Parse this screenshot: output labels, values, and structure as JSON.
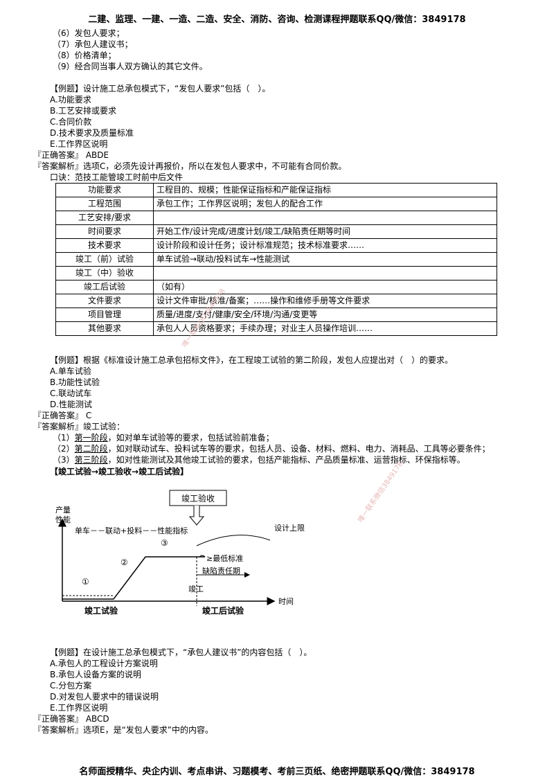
{
  "header": "二建、监理、一建、一造、二造、安全、消防、咨询、检测课程押题联系QQ/微信：3849178",
  "footer": "名师面授精华、央企内训、考点串讲、习题模考、考前三页纸、绝密押题联系QQ/微信：3849178",
  "top_list": [
    "（6）发包人要求；",
    "（7）承包人建议书；",
    "（8）价格清单；",
    "（9）经合同当事人双方确认的其它文件。"
  ],
  "q1": {
    "question": "【例题】设计施工总承包模式下，“发包人要求”包括（　）。",
    "options": [
      "A.功能要求",
      "B.工艺安排或要求",
      "C.合同价款",
      "D.技术要求及质量标准",
      "E.工作界区说明"
    ],
    "answer": "『正确答案』 ABDE",
    "analysis": "『答案解析』选项C，必须先设计再报价，所以在发包人要求中，不可能有合同价款。"
  },
  "mnemonic": "口诀：范技工能管竣工时前中后文件",
  "table": [
    [
      "功能要求",
      "工程目的、规模；性能保证指标和产能保证指标"
    ],
    [
      "工程范围",
      "承包工作；工作界区说明；发包人的配合工作"
    ],
    [
      "工艺安排/要求",
      ""
    ],
    [
      "时间要求",
      "开始工作/设计完成/进度计划/竣工/缺陷责任期等时间"
    ],
    [
      "技术要求",
      "设计阶段和设计任务；设计标准规范；技术标准要求……"
    ],
    [
      "竣工（前）试验",
      "单车试验→联动/投料试车→性能测试"
    ],
    [
      "竣工（中）验收",
      ""
    ],
    [
      "竣工后试验",
      "（如有）"
    ],
    [
      "文件要求",
      "设计文件审批/核准/备案；……操作和维修手册等文件要求"
    ],
    [
      "项目管理",
      "质量/进度/支付/健康/安全/环境/沟通/变更等"
    ],
    [
      "其他要求",
      "承包人人员资格要求；手续办理；对业主人员操作培训……"
    ]
  ],
  "q2": {
    "question": "【例题】根据《标准设计施工总承包招标文件》，在工程竣工试验的第二阶段，发包人应提出对（　）的要求。",
    "options": [
      "A.单车试验",
      "B.功能性试验",
      "C.联动试车",
      "D.性能测试"
    ],
    "answer": "『正确答案』 C",
    "analysis": "『答案解析』竣工试验："
  },
  "stages": [
    {
      "num": "（1）",
      "stage": "第一阶段",
      "text": "，如对单车试验等的要求，包括试验前准备；"
    },
    {
      "num": "（2）",
      "stage": "第二阶段",
      "text": "，如对联动试车、投料试车等的要求，包括人员、设备、材料、燃料、电力、消耗品、工具等必要条件；"
    },
    {
      "num": "（3）",
      "stage": "第三阶段",
      "text": "，如对性能测试及其他竣工试验的要求，包括产能指标、产品质量标准、运营指标、环保指标等。"
    }
  ],
  "flow": "【竣工试验→竣工验收→竣工后试验】",
  "diagram": {
    "box": "竣工验收",
    "y_label_1": "产量",
    "y_label_2": "性能",
    "seq": "单车－－联动+投料－－性能指标",
    "c1": "①",
    "c2": "②",
    "c3": "③",
    "upper": "设计上限",
    "min": "≥最低标准",
    "defect": "缺陷责任期",
    "done": "竣工",
    "time": "时间",
    "pre": "竣工试验",
    "post": "竣工后试验"
  },
  "q3": {
    "question": "【例题】在设计施工总承包模式下，“承包人建议书”的内容包括（　）。",
    "options": [
      "A.承包人的工程设计方案说明",
      "B.承包人设备方案的说明",
      "C.分包方案",
      "D.对发包人要求中的错误说明",
      "E.工作界区说明"
    ],
    "answer": "『正确答案』 ABCD",
    "analysis": "『答案解析』选项E，是“发包人要求”中的内容。"
  },
  "watermarks": [
    "唯一联系QQ3849178",
    "唯一联系微信3849178"
  ]
}
